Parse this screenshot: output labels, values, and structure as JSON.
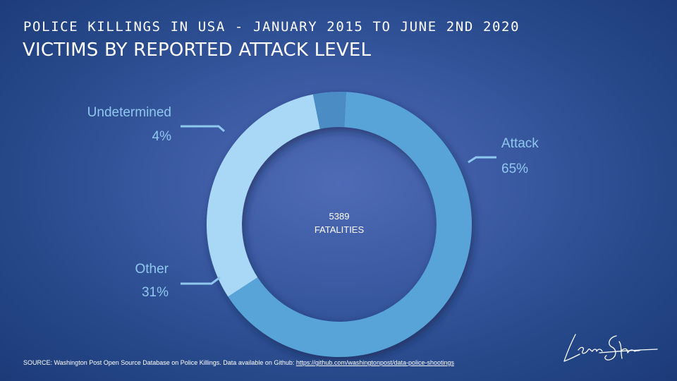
{
  "header": {
    "supertitle": "POLICE KILLINGS IN USA - JANUARY 2015 TO JUNE 2ND 2020",
    "title": "VICTIMS BY REPORTED ATTACK LEVEL"
  },
  "chart_data": {
    "type": "pie",
    "variant": "donut",
    "categories": [
      "Attack",
      "Other",
      "Undetermined"
    ],
    "values": [
      65,
      31,
      4
    ],
    "value_labels": [
      "65%",
      "31%",
      "4%"
    ],
    "colors": [
      "#58a4d8",
      "#a8d8f5",
      "#4b8cc4"
    ],
    "center_text": [
      "5389",
      "FATALITIES"
    ],
    "legend": "none"
  },
  "footer": {
    "source_text": "SOURCE: Washington Post Open Source Database on Police Killings. Data available on Github: ",
    "source_link": "https://github.com/washingtonpost/data-police-shootings"
  },
  "colors": {
    "label": "#8fc8ee",
    "text": "#ffffff"
  },
  "icons": {
    "signature": "author-signature-icon"
  }
}
